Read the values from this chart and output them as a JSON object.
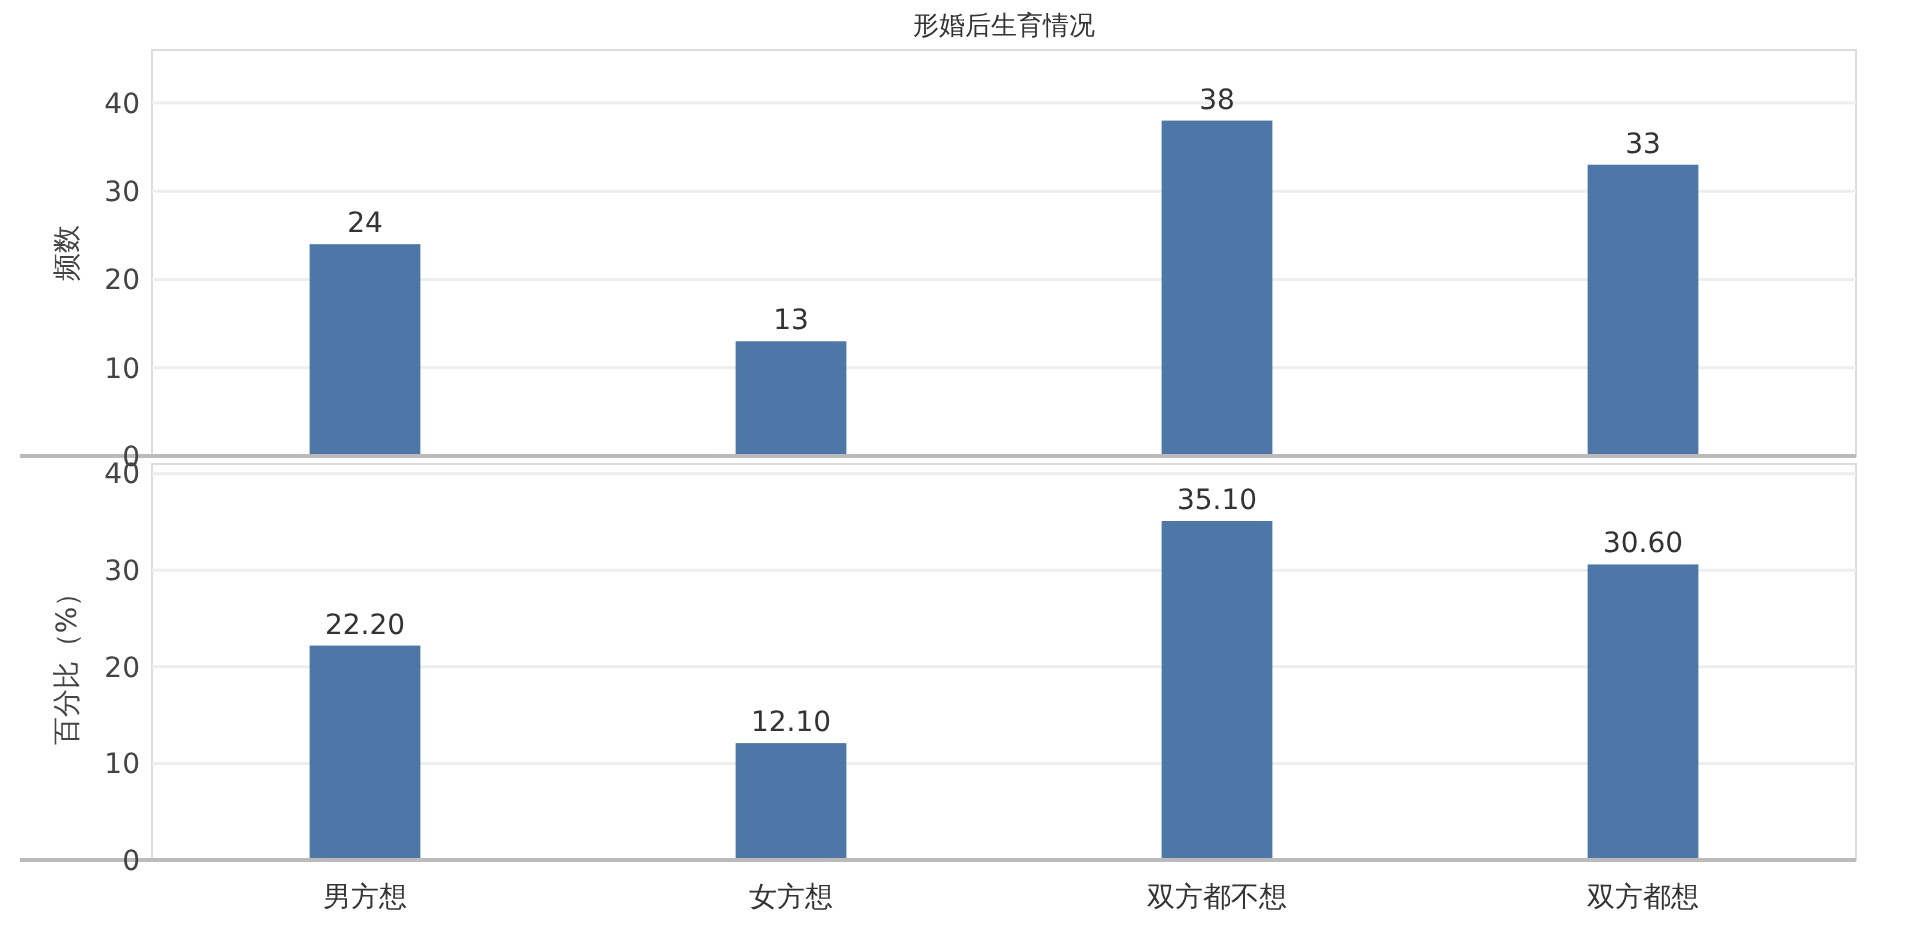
{
  "chart_data": [
    {
      "type": "bar",
      "title": "形婚后生育情况",
      "ylabel": "频数",
      "categories": [
        null,
        null,
        null,
        null
      ],
      "values": [
        24,
        13,
        38,
        33
      ],
      "color": "#4e77a8",
      "ylim": [
        0,
        46
      ],
      "yticks": [
        0,
        10,
        20,
        30,
        40
      ],
      "grid": "y",
      "data_labels": true,
      "tick_labels": "y"
    },
    {
      "type": "bar",
      "ylabel": "百分比（%）",
      "categories": [
        "男方想",
        "女方想",
        "双方都不想",
        "双方都想"
      ],
      "values": [
        22.2,
        12.1,
        35.1,
        30.6
      ],
      "color": "#4e77a8",
      "ylim": [
        0,
        41
      ],
      "yticks": [
        0,
        10,
        20,
        30,
        40
      ],
      "grid": "y",
      "value_labels": [
        "22.20",
        "12.10",
        "35.10",
        "30.60"
      ]
    }
  ]
}
